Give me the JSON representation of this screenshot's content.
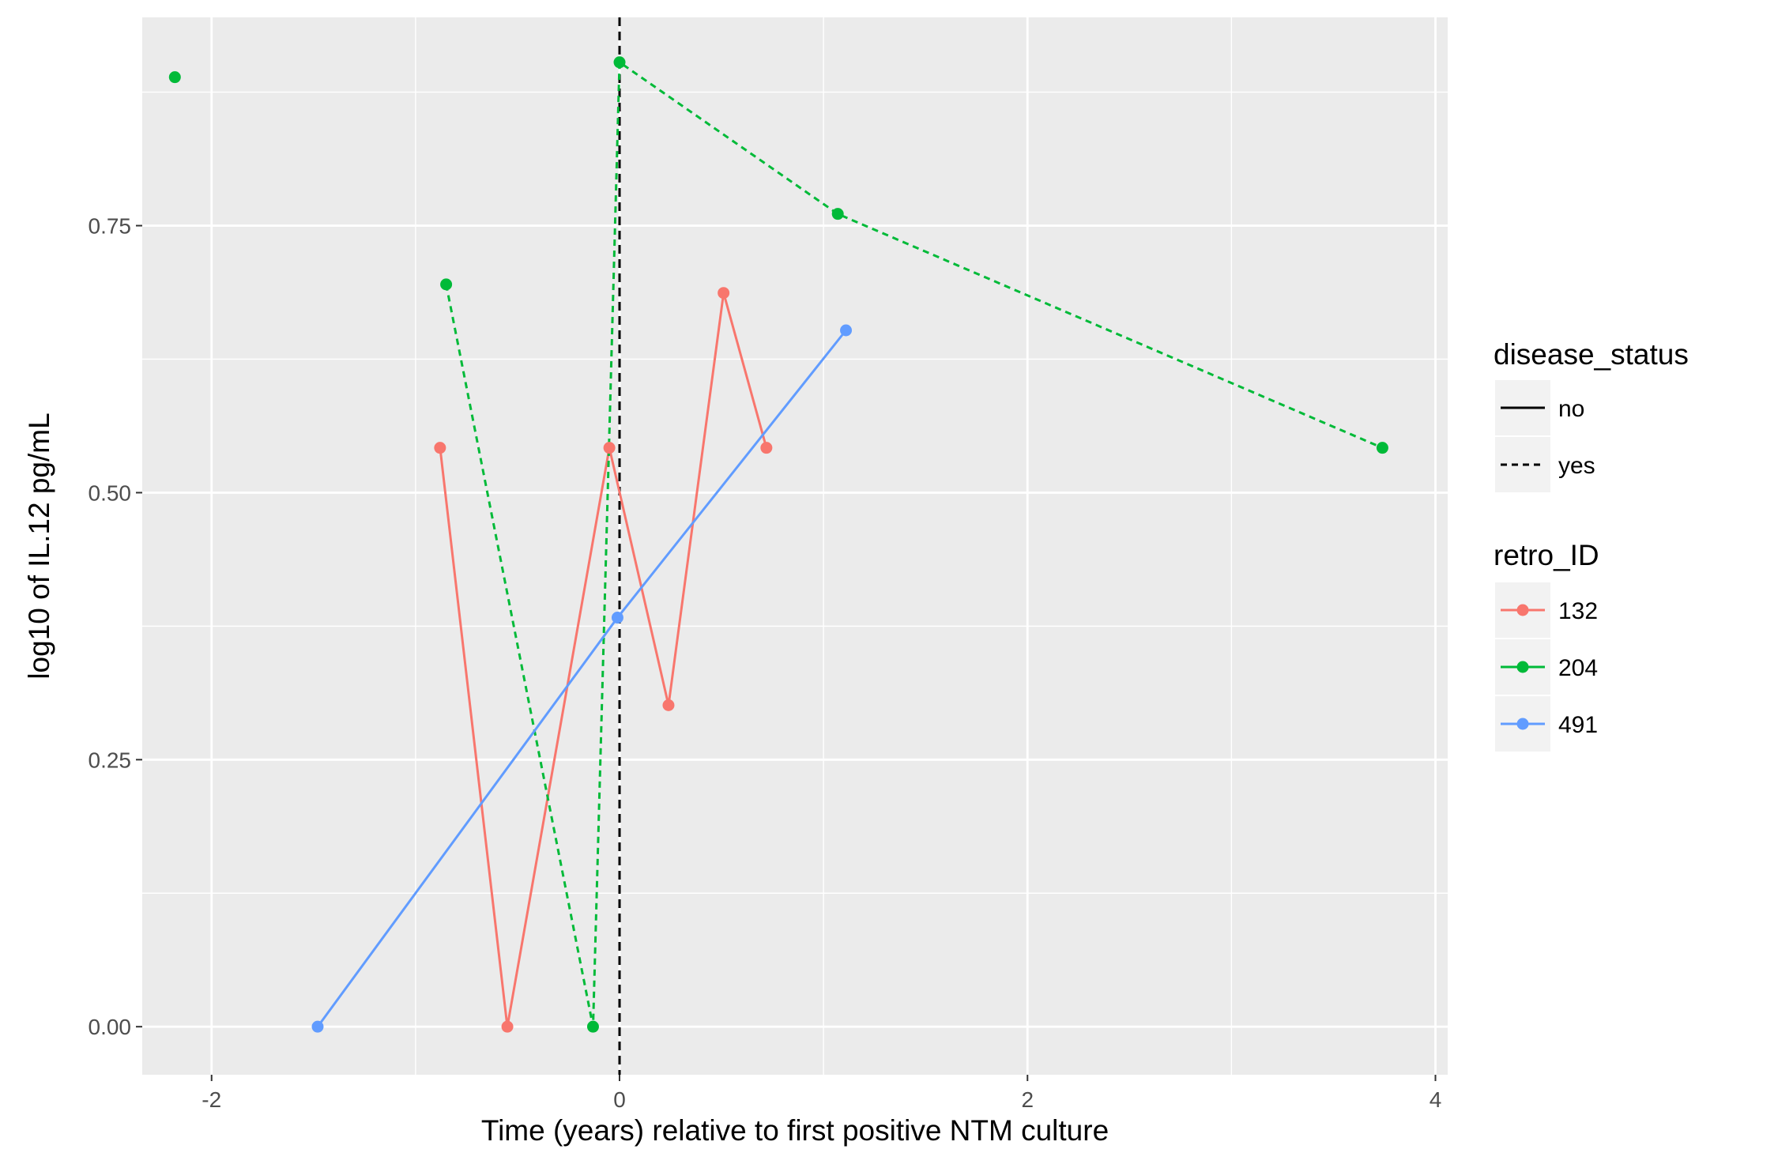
{
  "chart_data": {
    "type": "line",
    "title": "",
    "xlabel": "Time (years) relative to first positive NTM culture",
    "ylabel": "log10 of IL.12 pg/mL",
    "xlim": [
      -2.34,
      4.06
    ],
    "ylim": [
      -0.045,
      0.945
    ],
    "x_ticks": [
      -2,
      0,
      2,
      4
    ],
    "x_tick_labels": [
      "-2",
      "0",
      "2",
      "4"
    ],
    "y_ticks": [
      0.0,
      0.25,
      0.5,
      0.75
    ],
    "y_tick_labels": [
      "0.00",
      "0.25",
      "0.50",
      "0.75"
    ],
    "grid": true,
    "vline": {
      "x": 0,
      "linetype": "dashed",
      "color": "#000000"
    },
    "legend_position": "right",
    "legends": [
      {
        "title": "disease_status",
        "items": [
          {
            "label": "no",
            "linetype": "solid"
          },
          {
            "label": "yes",
            "linetype": "dashed"
          }
        ]
      },
      {
        "title": "retro_ID",
        "items": [
          {
            "label": "132",
            "color": "#F8766D"
          },
          {
            "label": "204",
            "color": "#00BA38"
          },
          {
            "label": "491",
            "color": "#619CFF"
          }
        ]
      }
    ],
    "series": [
      {
        "name": "132",
        "color": "#F8766D",
        "segments": [
          {
            "linetype": "solid",
            "points": [
              [
                -0.88,
                0.542
              ],
              [
                -0.55,
                0.0
              ],
              [
                -0.05,
                0.542
              ],
              [
                0.24,
                0.301
              ],
              [
                0.51,
                0.687
              ],
              [
                0.72,
                0.542
              ]
            ]
          }
        ]
      },
      {
        "name": "204",
        "color": "#00BA38",
        "segments": [
          {
            "linetype": "dashed",
            "points": [
              [
                -2.18,
                0.889
              ]
            ]
          },
          {
            "linetype": "dashed",
            "points": [
              [
                -0.85,
                0.695
              ],
              [
                -0.13,
                0.0
              ],
              [
                0.0,
                0.903
              ],
              [
                1.07,
                0.761
              ],
              [
                3.74,
                0.542
              ]
            ]
          }
        ]
      },
      {
        "name": "491",
        "color": "#619CFF",
        "segments": [
          {
            "linetype": "solid",
            "points": [
              [
                -1.48,
                0.0
              ],
              [
                -0.01,
                0.383
              ],
              [
                1.11,
                0.652
              ]
            ]
          }
        ]
      }
    ]
  }
}
